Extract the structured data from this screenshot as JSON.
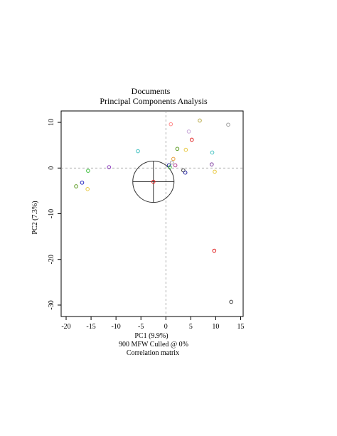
{
  "chart_data": {
    "type": "scatter",
    "title": "Documents",
    "subtitle": "Principal Components Analysis",
    "xlabel": "PC1 (9.9%)",
    "ylabel": "PC2 (7.3%)",
    "caption_lines": [
      "900 MFW  Culled @ 0%",
      "Correlation matrix"
    ],
    "xlim": [
      -21,
      15.5
    ],
    "ylim": [
      -32.5,
      12.5
    ],
    "x_ticks": [
      -20,
      -15,
      -10,
      -5,
      0,
      5,
      10,
      15
    ],
    "y_ticks": [
      -30,
      -20,
      -10,
      0,
      10
    ],
    "grid": false,
    "zero_lines": true,
    "points": [
      {
        "x": 1.0,
        "y": 9.6,
        "color": "#ff8c8c"
      },
      {
        "x": 6.8,
        "y": 10.4,
        "color": "#b5a642"
      },
      {
        "x": 12.5,
        "y": 9.5,
        "color": "#a0a0a0"
      },
      {
        "x": 4.6,
        "y": 8.0,
        "color": "#c8a8d8"
      },
      {
        "x": 5.2,
        "y": 6.2,
        "color": "#e02020"
      },
      {
        "x": 2.3,
        "y": 4.2,
        "color": "#5a9a20"
      },
      {
        "x": 4.0,
        "y": 4.0,
        "color": "#e8c840"
      },
      {
        "x": 9.3,
        "y": 3.4,
        "color": "#40c0c0"
      },
      {
        "x": -5.6,
        "y": 3.7,
        "color": "#40c0c0"
      },
      {
        "x": 1.5,
        "y": 2.0,
        "color": "#e8a040"
      },
      {
        "x": 1.2,
        "y": 1.2,
        "color": "#a0a0a0"
      },
      {
        "x": 0.6,
        "y": 0.6,
        "color": "#2020a0"
      },
      {
        "x": 1.9,
        "y": 0.6,
        "color": "#b04090"
      },
      {
        "x": 0.8,
        "y": 0.2,
        "color": "#40c040"
      },
      {
        "x": 3.5,
        "y": -0.5,
        "color": "#404040"
      },
      {
        "x": 3.9,
        "y": -1.0,
        "color": "#2020a0"
      },
      {
        "x": 9.2,
        "y": 0.8,
        "color": "#8040a0"
      },
      {
        "x": 9.8,
        "y": -0.8,
        "color": "#e8c840"
      },
      {
        "x": -11.4,
        "y": 0.2,
        "color": "#9040c0"
      },
      {
        "x": -15.6,
        "y": -0.6,
        "color": "#40c040"
      },
      {
        "x": -16.8,
        "y": -3.2,
        "color": "#2020c0"
      },
      {
        "x": -18.0,
        "y": -4.0,
        "color": "#5a9a20"
      },
      {
        "x": -15.7,
        "y": -4.6,
        "color": "#e8c840"
      },
      {
        "x": -2.5,
        "y": -3.0,
        "color": "#e02020"
      },
      {
        "x": 9.7,
        "y": -18.1,
        "color": "#e02020"
      },
      {
        "x": 13.1,
        "y": -29.3,
        "color": "#404040"
      }
    ],
    "centroid": {
      "x": -2.5,
      "y": -3.0
    }
  }
}
